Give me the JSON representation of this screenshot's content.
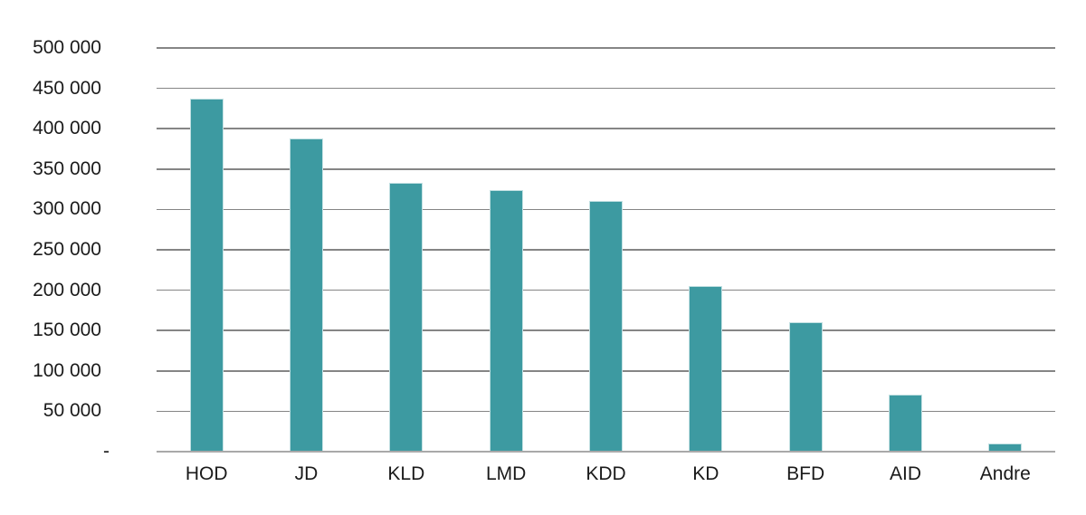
{
  "chart_data": {
    "type": "bar",
    "categories": [
      "HOD",
      "JD",
      "KLD",
      "LMD",
      "KDD",
      "KD",
      "BFD",
      "AID",
      "Andre"
    ],
    "values": [
      437000,
      388000,
      333000,
      324000,
      311000,
      205000,
      160000,
      71000,
      10000
    ],
    "title": "",
    "xlabel": "",
    "ylabel": "",
    "ylim": [
      0,
      500000
    ],
    "ytick_step": 50000,
    "ytick_labels": [
      "-",
      "50 000",
      "100 000",
      "150 000",
      "200 000",
      "250 000",
      "300 000",
      "350 000",
      "400 000",
      "450 000",
      "500 000"
    ],
    "grid": true,
    "legend": false,
    "colors": {
      "bar": "#3d9aa1",
      "bar_border": "#c2e0e2",
      "gridline": "#858585",
      "axis_line": "#a9a9a9",
      "text": "#1a1a1a",
      "background": "#ffffff"
    }
  }
}
